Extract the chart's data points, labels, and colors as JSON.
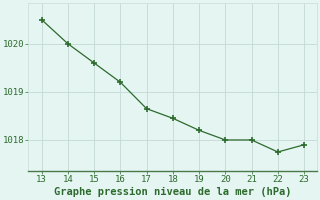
{
  "x": [
    13,
    14,
    15,
    16,
    17,
    18,
    19,
    20,
    21,
    22,
    23
  ],
  "y": [
    1020.5,
    1020.0,
    1019.6,
    1019.2,
    1018.65,
    1018.45,
    1018.2,
    1018.0,
    1018.0,
    1017.75,
    1017.9
  ],
  "line_color": "#2d6a2d",
  "marker": "+",
  "marker_size": 5,
  "marker_lw": 1.2,
  "line_width": 0.9,
  "xlabel": "Graphe pression niveau de la mer (hPa)",
  "xlabel_color": "#2d6a2d",
  "xlabel_fontsize": 7.5,
  "background_color": "#e5f5f2",
  "grid_color": "#c8ddd9",
  "tick_color": "#2d6a2d",
  "spine_color": "#4a7a4a",
  "xlim": [
    12.5,
    23.5
  ],
  "ylim": [
    1017.35,
    1020.85
  ],
  "xticks": [
    13,
    14,
    15,
    16,
    17,
    18,
    19,
    20,
    21,
    22,
    23
  ],
  "yticks": [
    1018,
    1019,
    1020
  ],
  "tick_fontsize": 6.5
}
